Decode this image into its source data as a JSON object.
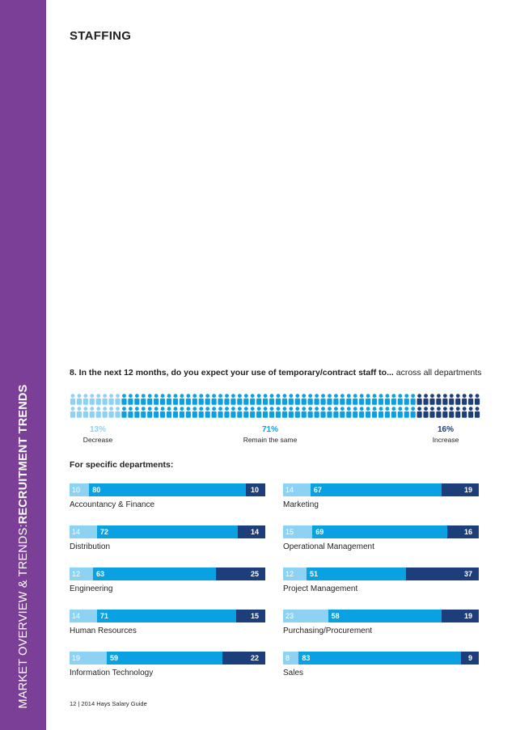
{
  "sidebar": {
    "text_regular": "MARKET OVERVIEW & TRENDS:",
    "text_bold": "RECRUITMENT TRENDS"
  },
  "section_title": "STAFFING",
  "question": {
    "bold": "8.  In the next 12 months, do you expect your use of temporary/contract staff to...",
    "regular": " across all departments"
  },
  "summary": {
    "decrease": {
      "pct": "13%",
      "label": "Decrease"
    },
    "same": {
      "pct": "71%",
      "label": "Remain the same"
    },
    "increase": {
      "pct": "16%",
      "label": "Increase"
    }
  },
  "colors": {
    "decrease": "#8ed2f3",
    "same": "#0aa1e2",
    "increase": "#1c3f7c",
    "sidebar": "#7b3f98"
  },
  "sub_heading": "For specific departments:",
  "footer": "12 | 2014 Hays Salary Guide",
  "chart_data": [
    {
      "type": "pictogram",
      "categories": [
        "Decrease",
        "Remain the same",
        "Increase"
      ],
      "values": [
        13,
        71,
        16
      ],
      "unit": "%"
    },
    {
      "type": "bar",
      "stacked": true,
      "orientation": "horizontal",
      "series_labels": [
        "Decrease",
        "Remain the same",
        "Increase"
      ],
      "departments": [
        {
          "name": "Accountancy & Finance",
          "values": [
            10,
            80,
            10
          ]
        },
        {
          "name": "Distribution",
          "values": [
            14,
            72,
            14
          ]
        },
        {
          "name": "Engineering",
          "values": [
            12,
            63,
            25
          ]
        },
        {
          "name": "Human Resources",
          "values": [
            14,
            71,
            15
          ]
        },
        {
          "name": "Information Technology",
          "values": [
            19,
            59,
            22
          ]
        },
        {
          "name": "Marketing",
          "values": [
            14,
            67,
            19
          ]
        },
        {
          "name": "Operational Management",
          "values": [
            15,
            69,
            16
          ]
        },
        {
          "name": "Project Management",
          "values": [
            12,
            51,
            37
          ]
        },
        {
          "name": "Purchasing/Procurement",
          "values": [
            23,
            58,
            19
          ]
        },
        {
          "name": "Sales",
          "values": [
            8,
            83,
            9
          ]
        }
      ]
    }
  ]
}
